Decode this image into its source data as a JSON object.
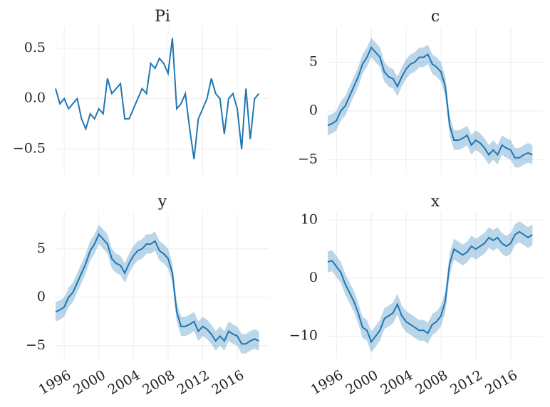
{
  "chart_data": [
    {
      "type": "line",
      "title": "Pi",
      "color": "#1f77b4",
      "grid": true,
      "x": [
        1995.0,
        1995.5,
        1996.0,
        1996.5,
        1997.0,
        1997.5,
        1998.0,
        1998.5,
        1999.0,
        1999.5,
        2000.0,
        2000.5,
        2001.0,
        2001.5,
        2002.0,
        2002.5,
        2003.0,
        2003.5,
        2004.0,
        2004.5,
        2005.0,
        2005.5,
        2006.0,
        2006.5,
        2007.0,
        2007.5,
        2008.0,
        2008.5,
        2009.0,
        2009.5,
        2010.0,
        2010.5,
        2011.0,
        2011.5,
        2012.0,
        2012.5,
        2013.0,
        2013.5,
        2014.0,
        2014.5,
        2015.0,
        2015.5,
        2016.0,
        2016.5,
        2017.0,
        2017.5,
        2018.0,
        2018.5
      ],
      "values": [
        0.1,
        -0.05,
        0.0,
        -0.1,
        -0.05,
        0.0,
        -0.2,
        -0.3,
        -0.15,
        -0.2,
        -0.1,
        -0.15,
        0.2,
        0.05,
        0.1,
        0.15,
        -0.2,
        -0.2,
        -0.1,
        0.0,
        0.1,
        0.05,
        0.35,
        0.3,
        0.4,
        0.35,
        0.25,
        0.6,
        -0.1,
        -0.05,
        0.05,
        -0.3,
        -0.6,
        -0.2,
        -0.1,
        0.0,
        0.2,
        0.05,
        0.0,
        -0.35,
        0.0,
        0.05,
        -0.1,
        -0.5,
        0.1,
        -0.4,
        0.0,
        0.05
      ],
      "xlim": [
        1995.0,
        2019.7
      ],
      "xticks": [
        1996,
        2000,
        2004,
        2008,
        2012,
        2016
      ],
      "ylim": [
        -0.75,
        0.71
      ],
      "yticks": [
        {
          "value": -0.5,
          "label": "−0.5"
        },
        {
          "value": 0,
          "label": "0.0"
        },
        {
          "value": 0.5,
          "label": "0.5"
        }
      ]
    },
    {
      "type": "line",
      "title": "c",
      "color": "#1f77b4",
      "band_color": "#1f77b4",
      "grid": true,
      "x": [
        1995.0,
        1995.5,
        1996.0,
        1996.5,
        1997.0,
        1997.5,
        1998.0,
        1998.5,
        1999.0,
        1999.5,
        2000.0,
        2000.5,
        2001.0,
        2001.5,
        2002.0,
        2002.5,
        2003.0,
        2003.5,
        2004.0,
        2004.5,
        2005.0,
        2005.5,
        2006.0,
        2006.5,
        2007.0,
        2007.5,
        2008.0,
        2008.5,
        2009.0,
        2009.5,
        2010.0,
        2010.5,
        2011.0,
        2011.5,
        2012.0,
        2012.5,
        2013.0,
        2013.5,
        2014.0,
        2014.5,
        2015.0,
        2015.5,
        2016.0,
        2016.5,
        2017.0,
        2017.5,
        2018.0,
        2018.5
      ],
      "values": [
        -1.5,
        -1.3,
        -1.0,
        0,
        0.5,
        1.5,
        2.5,
        3.5,
        4.8,
        5.5,
        6.5,
        6.0,
        5.5,
        4.0,
        3.5,
        3.3,
        2.5,
        3.5,
        4.3,
        4.8,
        5.0,
        5.5,
        5.5,
        5.8,
        4.8,
        4.5,
        4.0,
        2.5,
        -1.5,
        -3.0,
        -3.0,
        -2.8,
        -2.5,
        -3.5,
        -3.0,
        -3.3,
        -3.8,
        -4.5,
        -4.0,
        -4.5,
        -3.5,
        -3.8,
        -4.0,
        -4.8,
        -4.8,
        -4.5,
        -4.3,
        -4.5
      ],
      "lower": [
        -2.5,
        -2.3,
        -2.0,
        -1.0,
        -0.5,
        0.5,
        1.5,
        2.5,
        3.8,
        4.5,
        5.5,
        5.0,
        4.5,
        3.0,
        2.5,
        2.3,
        1.5,
        2.5,
        3.3,
        3.8,
        4.0,
        4.5,
        4.5,
        4.8,
        3.8,
        3.5,
        3.0,
        1.5,
        -2.5,
        -4.0,
        -4.0,
        -3.8,
        -3.5,
        -4.5,
        -4.0,
        -4.3,
        -4.8,
        -5.5,
        -5.0,
        -5.5,
        -4.5,
        -4.8,
        -5.0,
        -5.8,
        -5.8,
        -5.5,
        -5.3,
        -5.5
      ],
      "upper": [
        -0.5,
        -0.3,
        0.0,
        1.0,
        1.5,
        2.5,
        3.5,
        4.5,
        5.8,
        6.5,
        7.5,
        7.0,
        6.5,
        5.0,
        4.5,
        4.3,
        3.5,
        4.5,
        5.3,
        5.8,
        6.0,
        6.5,
        6.5,
        6.8,
        5.8,
        5.5,
        5.0,
        3.5,
        -0.5,
        -2.0,
        -2.0,
        -1.8,
        -1.5,
        -2.5,
        -2.0,
        -2.3,
        -2.8,
        -3.5,
        -3.0,
        -3.5,
        -2.5,
        -2.8,
        -3.0,
        -3.8,
        -3.8,
        -3.5,
        -3.3,
        -3.5
      ],
      "xlim": [
        1995.0,
        2019.7
      ],
      "xticks": [
        1996,
        2000,
        2004,
        2008,
        2012,
        2016
      ],
      "ylim": [
        -6.5,
        8.6
      ],
      "yticks": [
        {
          "value": -5,
          "label": "−5"
        },
        0,
        5
      ]
    },
    {
      "type": "line",
      "title": "y",
      "color": "#1f77b4",
      "band_color": "#1f77b4",
      "grid": true,
      "x": [
        1995.0,
        1995.5,
        1996.0,
        1996.5,
        1997.0,
        1997.5,
        1998.0,
        1998.5,
        1999.0,
        1999.5,
        2000.0,
        2000.5,
        2001.0,
        2001.5,
        2002.0,
        2002.5,
        2003.0,
        2003.5,
        2004.0,
        2004.5,
        2005.0,
        2005.5,
        2006.0,
        2006.5,
        2007.0,
        2007.5,
        2008.0,
        2008.5,
        2009.0,
        2009.5,
        2010.0,
        2010.5,
        2011.0,
        2011.5,
        2012.0,
        2012.5,
        2013.0,
        2013.5,
        2014.0,
        2014.5,
        2015.0,
        2015.5,
        2016.0,
        2016.5,
        2017.0,
        2017.5,
        2018.0,
        2018.5
      ],
      "values": [
        -1.5,
        -1.3,
        -1.0,
        0,
        0.5,
        1.5,
        2.5,
        3.5,
        4.8,
        5.5,
        6.5,
        6.0,
        5.5,
        4.0,
        3.5,
        3.3,
        2.5,
        3.5,
        4.3,
        4.8,
        5.0,
        5.5,
        5.5,
        5.8,
        4.8,
        4.5,
        4.0,
        2.5,
        -1.5,
        -3.0,
        -3.0,
        -2.8,
        -2.5,
        -3.5,
        -3.0,
        -3.3,
        -3.8,
        -4.5,
        -4.0,
        -4.5,
        -3.5,
        -3.8,
        -4.0,
        -4.8,
        -4.8,
        -4.5,
        -4.3,
        -4.5
      ],
      "lower": [
        -2.5,
        -2.3,
        -2.0,
        -1.0,
        -0.5,
        0.5,
        1.5,
        2.5,
        3.8,
        4.5,
        5.5,
        5.0,
        4.5,
        3.0,
        2.5,
        2.3,
        1.5,
        2.5,
        3.3,
        3.8,
        4.0,
        4.5,
        4.5,
        4.8,
        3.8,
        3.5,
        3.0,
        1.5,
        -2.5,
        -4.0,
        -4.0,
        -3.8,
        -3.5,
        -4.5,
        -4.0,
        -4.3,
        -4.8,
        -5.5,
        -5.0,
        -5.5,
        -4.5,
        -4.8,
        -5.0,
        -5.8,
        -5.8,
        -5.5,
        -5.3,
        -5.5
      ],
      "upper": [
        -0.5,
        -0.3,
        0.0,
        1.0,
        1.5,
        2.5,
        3.5,
        4.5,
        5.8,
        6.5,
        7.5,
        7.0,
        6.5,
        5.0,
        4.5,
        4.3,
        3.5,
        4.5,
        5.3,
        5.8,
        6.0,
        6.5,
        6.5,
        6.8,
        5.8,
        5.5,
        5.0,
        3.5,
        -0.5,
        -2.0,
        -2.0,
        -1.8,
        -1.5,
        -2.5,
        -2.0,
        -2.3,
        -2.8,
        -3.5,
        -3.0,
        -3.5,
        -2.5,
        -2.8,
        -3.0,
        -3.8,
        -3.8,
        -3.5,
        -3.3,
        -3.5
      ],
      "xlim": [
        1995.0,
        2019.7
      ],
      "xticks": [
        1996,
        2000,
        2004,
        2008,
        2012,
        2016
      ],
      "ylim": [
        -6.4,
        8.8
      ],
      "yticks": [
        {
          "value": -5,
          "label": "−5"
        },
        0,
        5
      ]
    },
    {
      "type": "line",
      "title": "x",
      "color": "#1f77b4",
      "band_color": "#1f77b4",
      "grid": true,
      "x": [
        1995.0,
        1995.5,
        1996.0,
        1996.5,
        1997.0,
        1997.5,
        1998.0,
        1998.5,
        1999.0,
        1999.5,
        2000.0,
        2000.5,
        2001.0,
        2001.5,
        2002.0,
        2002.5,
        2003.0,
        2003.5,
        2004.0,
        2004.5,
        2005.0,
        2005.5,
        2006.0,
        2006.5,
        2007.0,
        2007.5,
        2008.0,
        2008.5,
        2009.0,
        2009.5,
        2010.0,
        2010.5,
        2011.0,
        2011.5,
        2012.0,
        2012.5,
        2013.0,
        2013.5,
        2014.0,
        2014.5,
        2015.0,
        2015.5,
        2016.0,
        2016.5,
        2017.0,
        2017.5,
        2018.0,
        2018.5
      ],
      "values": [
        2.8,
        3.0,
        2.0,
        1.0,
        -1.0,
        -2.5,
        -4.0,
        -6.0,
        -8.5,
        -9.0,
        -11.0,
        -10.0,
        -9.0,
        -7.0,
        -6.5,
        -6.0,
        -4.5,
        -6.5,
        -7.5,
        -8.0,
        -8.5,
        -9.0,
        -9.0,
        -9.5,
        -8.0,
        -7.5,
        -6.5,
        -4.0,
        2.5,
        5.0,
        4.5,
        4.0,
        4.5,
        5.5,
        5.0,
        5.5,
        6.0,
        7.0,
        6.5,
        7.0,
        6.0,
        5.5,
        6.0,
        7.5,
        8.0,
        7.5,
        7.0,
        7.5
      ],
      "lower": [
        1.0,
        1.2,
        0.2,
        -0.8,
        -2.8,
        -4.3,
        -5.8,
        -7.8,
        -10.3,
        -10.8,
        -12.8,
        -11.8,
        -10.8,
        -8.8,
        -8.3,
        -7.8,
        -6.3,
        -8.3,
        -9.3,
        -9.8,
        -10.3,
        -10.8,
        -10.8,
        -11.3,
        -9.8,
        -9.3,
        -8.3,
        -5.8,
        0.7,
        3.2,
        2.7,
        2.2,
        2.7,
        3.7,
        3.2,
        3.7,
        4.2,
        5.2,
        4.7,
        5.2,
        4.2,
        3.7,
        4.2,
        5.7,
        6.2,
        5.7,
        5.2,
        5.7
      ],
      "upper": [
        4.6,
        4.8,
        3.8,
        2.8,
        0.8,
        -0.7,
        -2.2,
        -4.2,
        -6.7,
        -7.2,
        -9.2,
        -8.2,
        -7.2,
        -5.2,
        -4.7,
        -4.2,
        -2.7,
        -4.7,
        -5.7,
        -6.2,
        -6.7,
        -7.2,
        -7.2,
        -7.7,
        -6.2,
        -5.7,
        -4.7,
        -2.2,
        4.3,
        6.8,
        6.3,
        5.8,
        6.3,
        7.3,
        6.8,
        7.3,
        7.8,
        8.8,
        8.3,
        8.8,
        7.8,
        7.3,
        7.8,
        9.3,
        9.8,
        9.3,
        8.8,
        9.3
      ],
      "xlim": [
        1995.0,
        2019.7
      ],
      "xticks": [
        1996,
        2000,
        2004,
        2008,
        2012,
        2016
      ],
      "ylim": [
        -14,
        11.4
      ],
      "yticks": [
        {
          "value": -10,
          "label": "−10"
        },
        0,
        10
      ]
    }
  ]
}
